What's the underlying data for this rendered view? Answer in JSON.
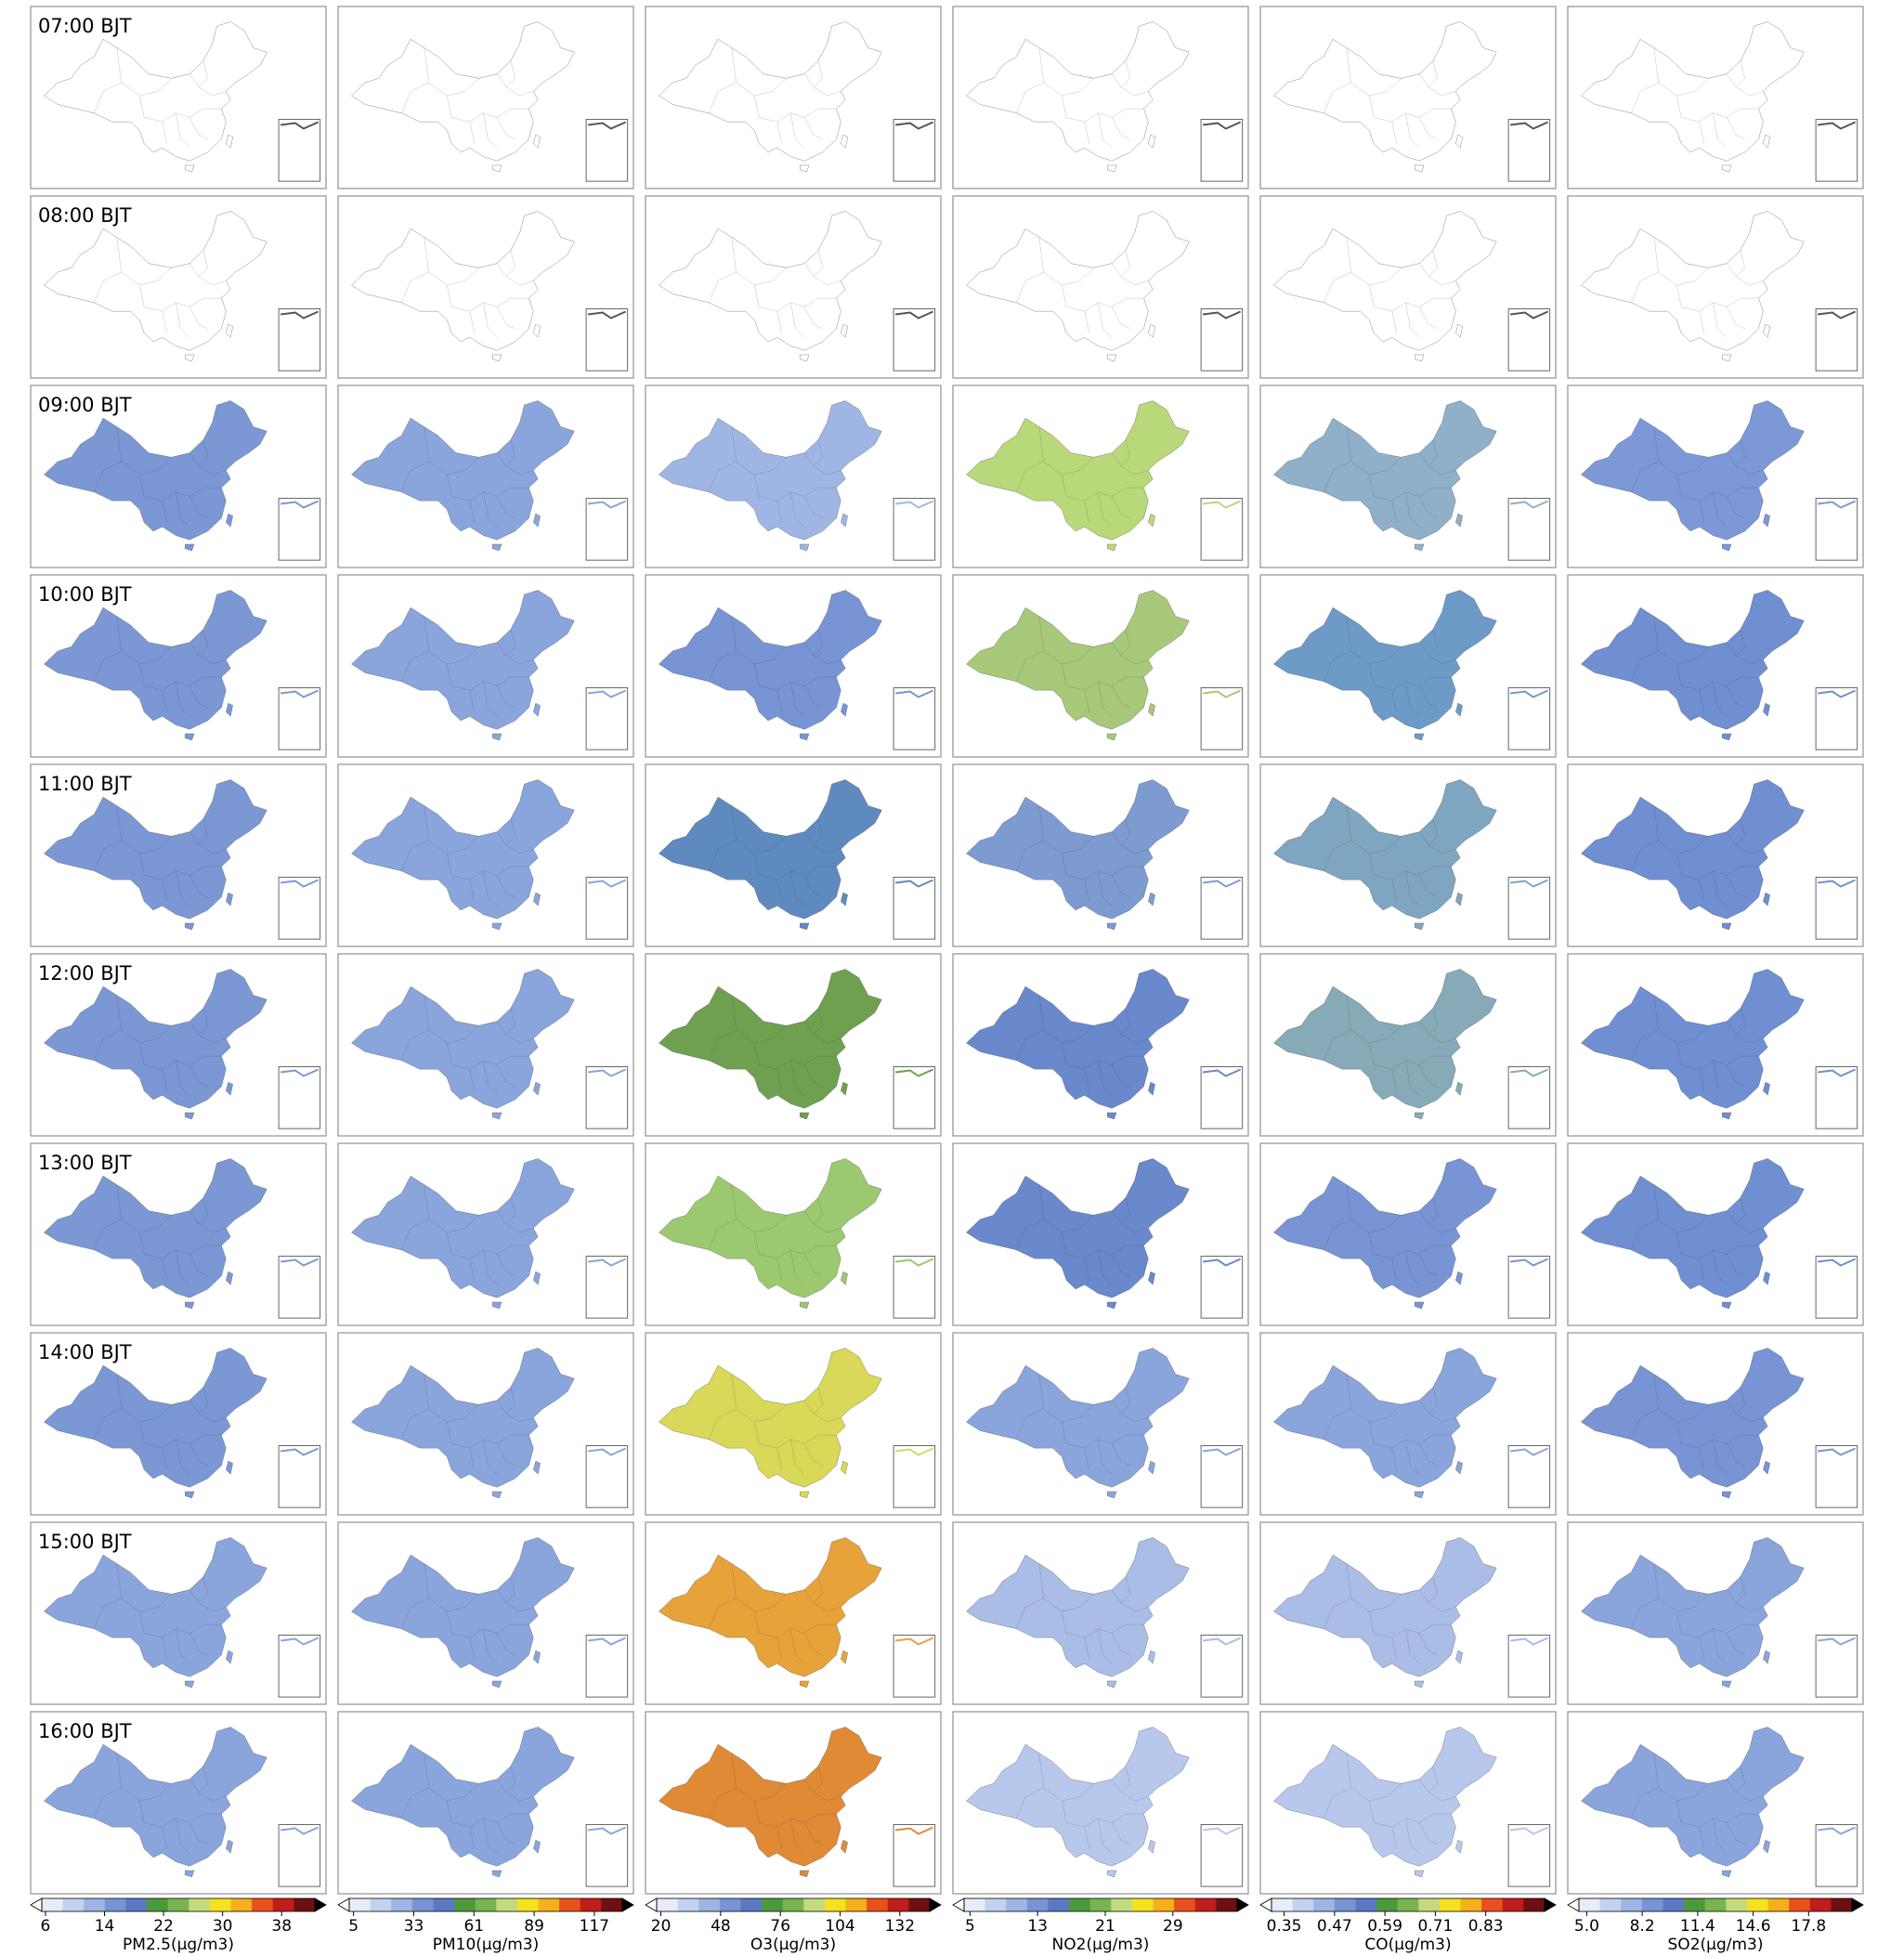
{
  "panels": {
    "rows": [
      {
        "time": "07:00 BJT",
        "fills": [
          null,
          null,
          null,
          null,
          null,
          null
        ]
      },
      {
        "time": "08:00 BJT",
        "fills": [
          null,
          null,
          null,
          null,
          null,
          null
        ]
      },
      {
        "time": "09:00 BJT",
        "fills": [
          "#7b98d4",
          "#8aa4dc",
          "#9fb6e4",
          "#b9d87a",
          "#8fb0c8",
          "#7d98d6"
        ]
      },
      {
        "time": "10:00 BJT",
        "fills": [
          "#7b98d4",
          "#8aa4dc",
          "#7894d4",
          "#a8c87a",
          "#6e9ac8",
          "#6f8fd2"
        ]
      },
      {
        "time": "11:00 BJT",
        "fills": [
          "#7b98d4",
          "#8aa4dc",
          "#5f8ac0",
          "#7d9bd0",
          "#7ea6c0",
          "#6f8fd2"
        ]
      },
      {
        "time": "12:00 BJT",
        "fills": [
          "#7b98d4",
          "#8aa4dc",
          "#6fa050",
          "#6a88cc",
          "#86aab8",
          "#6f8fd2"
        ]
      },
      {
        "time": "13:00 BJT",
        "fills": [
          "#7b98d4",
          "#8aa4dc",
          "#9cc870",
          "#6a88cc",
          "#7894d4",
          "#6f8fd2"
        ]
      },
      {
        "time": "14:00 BJT",
        "fills": [
          "#7b98d4",
          "#8aa4dc",
          "#d9d858",
          "#8aa4dc",
          "#8aa4dc",
          "#7894d4"
        ]
      },
      {
        "time": "15:00 BJT",
        "fills": [
          "#8aa4dc",
          "#8aa4dc",
          "#e7a23a",
          "#a9bde6",
          "#a9bde6",
          "#8aa4dc"
        ]
      },
      {
        "time": "16:00 BJT",
        "fills": [
          "#8aa4dc",
          "#8aa4dc",
          "#e08a36",
          "#b8c8ec",
          "#b8c8ec",
          "#8aa4dc"
        ]
      }
    ]
  },
  "colormap": [
    "#ffffff",
    "#e6ecf8",
    "#c3d2ef",
    "#9eb4e4",
    "#7894d4",
    "#5a78c4",
    "#4a9a3c",
    "#78b450",
    "#c3db7c",
    "#f5e21e",
    "#f5b01a",
    "#e8501c",
    "#c01d1b",
    "#6e1010",
    "#000000"
  ],
  "colorbars": [
    {
      "label": "PM2.5(μg/m3)",
      "clim": [
        5.5,
        42.5
      ],
      "ticks": [
        6,
        14,
        22,
        30,
        38
      ]
    },
    {
      "label": "PM10(μg/m3)",
      "clim": [
        3,
        130
      ],
      "ticks": [
        5,
        33,
        61,
        89,
        117
      ]
    },
    {
      "label": "O3(μg/m3)",
      "clim": [
        18,
        146
      ],
      "ticks": [
        20,
        48,
        76,
        104,
        132
      ]
    },
    {
      "label": "NO2(μg/m3)",
      "clim": [
        4.3,
        36.6
      ],
      "ticks": [
        5,
        13,
        21,
        29
      ]
    },
    {
      "label": "CO(μg/m3)",
      "clim": [
        0.32,
        0.97
      ],
      "ticks": [
        0.35,
        0.47,
        0.59,
        0.71,
        0.83
      ]
    },
    {
      "label": "SO2(μg/m3)",
      "clim": [
        4.55,
        20.3
      ],
      "ticks": [
        {
          "value": 5,
          "label": "5.0"
        },
        8.2,
        11.4,
        14.6,
        17.8
      ]
    }
  ]
}
